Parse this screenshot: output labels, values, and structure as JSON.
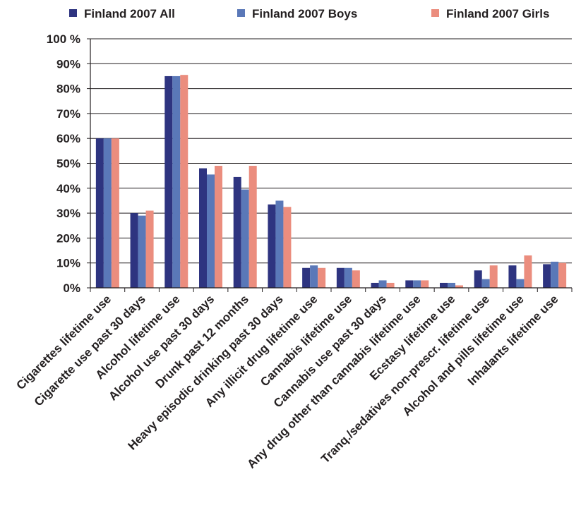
{
  "chart_data": {
    "type": "bar",
    "title": "",
    "xlabel": "",
    "ylabel": "",
    "ylim": [
      0,
      100
    ],
    "yticks": [
      0,
      10,
      20,
      30,
      40,
      50,
      60,
      70,
      80,
      90,
      100
    ],
    "ytick_labels": [
      "0%",
      "10%",
      "20%",
      "30%",
      "40%",
      "50%",
      "60%",
      "70%",
      "80%",
      "90%",
      "100 %"
    ],
    "grid": "horizontal",
    "legend_position": "top",
    "categories": [
      "Cigarettes lifetime use",
      "Cigarette use past 30 days",
      "Alcohol lifetime use",
      "Alcohol use past 30 days",
      "Drunk past 12 months",
      "Heavy episodic drinking past 30 days",
      "Any illicit drug lifetime use",
      "Cannabis lifetime use",
      "Cannabis use past 30 days",
      "Any drug other than cannabis lifetime use",
      "Ecstasy lifetime use",
      "Tranq./sedatives non-prescr. lifetime use",
      "Alcohol and pills lifetime use",
      "Inhalants lifetime use"
    ],
    "series": [
      {
        "name": "Finland 2007 All",
        "color": "#2e3480",
        "values": [
          60,
          30,
          85,
          48,
          44.5,
          33.5,
          8,
          8,
          2,
          3,
          2,
          7,
          9,
          9.5
        ]
      },
      {
        "name": "Finland 2007 Boys",
        "color": "#5a78b8",
        "values": [
          60,
          29,
          85,
          45.5,
          39.5,
          35,
          9,
          8,
          3,
          3,
          2,
          3.5,
          3.5,
          10.5
        ]
      },
      {
        "name": "Finland 2007 Girls",
        "color": "#eb8d7e",
        "values": [
          60,
          31,
          85.5,
          49,
          49,
          32.5,
          8,
          7,
          2,
          3,
          1,
          9,
          13,
          10
        ]
      }
    ]
  }
}
